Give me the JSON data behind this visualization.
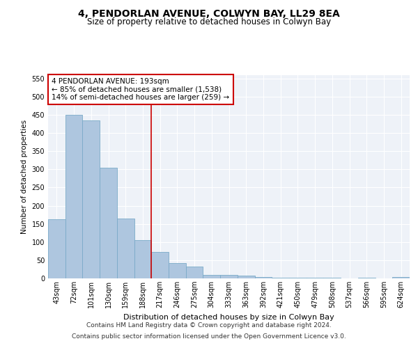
{
  "title": "4, PENDORLAN AVENUE, COLWYN BAY, LL29 8EA",
  "subtitle": "Size of property relative to detached houses in Colwyn Bay",
  "xlabel": "Distribution of detached houses by size in Colwyn Bay",
  "ylabel": "Number of detached properties",
  "categories": [
    "43sqm",
    "72sqm",
    "101sqm",
    "130sqm",
    "159sqm",
    "188sqm",
    "217sqm",
    "246sqm",
    "275sqm",
    "304sqm",
    "333sqm",
    "363sqm",
    "392sqm",
    "421sqm",
    "450sqm",
    "479sqm",
    "508sqm",
    "537sqm",
    "566sqm",
    "595sqm",
    "624sqm"
  ],
  "values": [
    163,
    450,
    435,
    305,
    165,
    105,
    73,
    43,
    32,
    10,
    10,
    8,
    4,
    2,
    2,
    1,
    1,
    0,
    1,
    0,
    3
  ],
  "bar_color": "#aec6df",
  "bar_edge_color": "#7aaac8",
  "vline_idx": 5,
  "vline_color": "#cc0000",
  "annotation_text": "4 PENDORLAN AVENUE: 193sqm\n← 85% of detached houses are smaller (1,538)\n14% of semi-detached houses are larger (259) →",
  "ylim": [
    0,
    560
  ],
  "yticks": [
    0,
    50,
    100,
    150,
    200,
    250,
    300,
    350,
    400,
    450,
    500,
    550
  ],
  "footer_line1": "Contains HM Land Registry data © Crown copyright and database right 2024.",
  "footer_line2": "Contains public sector information licensed under the Open Government Licence v3.0.",
  "bg_color": "#eef2f8",
  "grid_color": "#ffffff",
  "title_fontsize": 10,
  "subtitle_fontsize": 8.5,
  "xlabel_fontsize": 8,
  "ylabel_fontsize": 7.5,
  "tick_fontsize": 7,
  "annotation_fontsize": 7.5,
  "footer_fontsize": 6.5
}
